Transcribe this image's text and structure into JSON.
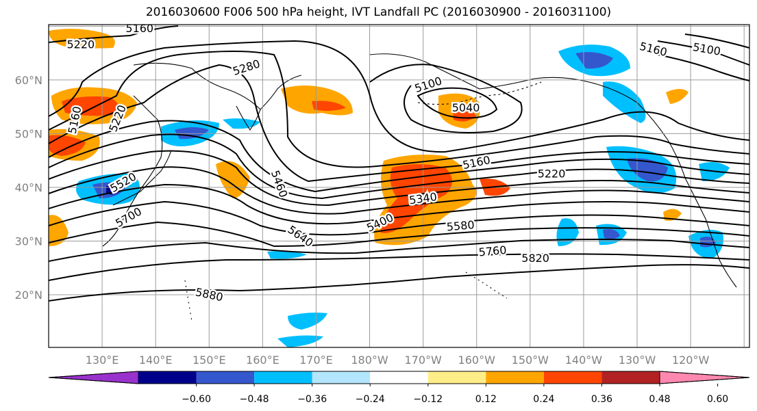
{
  "title": "2016030600 F006 500 hPa height, IVT Landfall PC (2016030900 - 2016031100)",
  "map": {
    "lat_labels": [
      {
        "lat": 60,
        "text": "60°N"
      },
      {
        "lat": 50,
        "text": "50°N"
      },
      {
        "lat": 40,
        "text": "40°N"
      },
      {
        "lat": 30,
        "text": "30°N"
      },
      {
        "lat": 20,
        "text": "20°N"
      }
    ],
    "lon_labels": [
      {
        "lon": 130,
        "text": "130°E"
      },
      {
        "lon": 140,
        "text": "140°E"
      },
      {
        "lon": 150,
        "text": "150°E"
      },
      {
        "lon": 160,
        "text": "160°E"
      },
      {
        "lon": 170,
        "text": "170°E"
      },
      {
        "lon": 180,
        "text": "180°W"
      },
      {
        "lon": 190,
        "text": "170°W"
      },
      {
        "lon": 200,
        "text": "160°W"
      },
      {
        "lon": 210,
        "text": "150°W"
      },
      {
        "lon": 220,
        "text": "140°W"
      },
      {
        "lon": 230,
        "text": "130°W"
      },
      {
        "lon": 240,
        "text": "120°W"
      }
    ],
    "contour_labels": [
      {
        "text": "5160",
        "lon": 137,
        "lat": 69.5,
        "rot": 0
      },
      {
        "text": "5220",
        "lon": 126,
        "lat": 66.5,
        "rot": 0
      },
      {
        "text": "5280",
        "lon": 157,
        "lat": 62.2,
        "rot": -18
      },
      {
        "text": "5160",
        "lon": 125,
        "lat": 52.5,
        "rot": -78
      },
      {
        "text": "5220",
        "lon": 133,
        "lat": 52.8,
        "rot": -68
      },
      {
        "text": "5100",
        "lon": 191,
        "lat": 59.0,
        "rot": -18
      },
      {
        "text": "5040",
        "lon": 198,
        "lat": 54.7,
        "rot": 0
      },
      {
        "text": "5160",
        "lon": 233,
        "lat": 65.6,
        "rot": 14
      },
      {
        "text": "5100",
        "lon": 243,
        "lat": 65.6,
        "rot": 10
      },
      {
        "text": "5160",
        "lon": 200,
        "lat": 44.5,
        "rot": -12
      },
      {
        "text": "5220",
        "lon": 214,
        "lat": 42.4,
        "rot": 0
      },
      {
        "text": "5340",
        "lon": 190,
        "lat": 37.8,
        "rot": -8
      },
      {
        "text": "5400",
        "lon": 182,
        "lat": 33.3,
        "rot": -25
      },
      {
        "text": "5460",
        "lon": 163,
        "lat": 40.6,
        "rot": 70
      },
      {
        "text": "5520",
        "lon": 134,
        "lat": 40.8,
        "rot": -30
      },
      {
        "text": "5700",
        "lon": 135,
        "lat": 34.3,
        "rot": -30
      },
      {
        "text": "5580",
        "lon": 197,
        "lat": 32.7,
        "rot": -5
      },
      {
        "text": "5640",
        "lon": 167,
        "lat": 30.8,
        "rot": 35
      },
      {
        "text": "5760",
        "lon": 203,
        "lat": 28.0,
        "rot": -5
      },
      {
        "text": "5820",
        "lon": 211,
        "lat": 26.7,
        "rot": 0
      },
      {
        "text": "5880",
        "lon": 150,
        "lat": 19.9,
        "rot": 12
      }
    ]
  },
  "colorbar": {
    "tick_labels": [
      "−0.60",
      "−0.48",
      "−0.36",
      "−0.24",
      "−0.12",
      "0.12",
      "0.24",
      "0.36",
      "0.48",
      "0.60"
    ],
    "colors": [
      "#9932cc",
      "#00008b",
      "#3557cd",
      "#00bfff",
      "#b3e5fc",
      "#ffffff",
      "#ffee88",
      "#ffa500",
      "#ff4500",
      "#b22222",
      "#ff88b0"
    ]
  }
}
